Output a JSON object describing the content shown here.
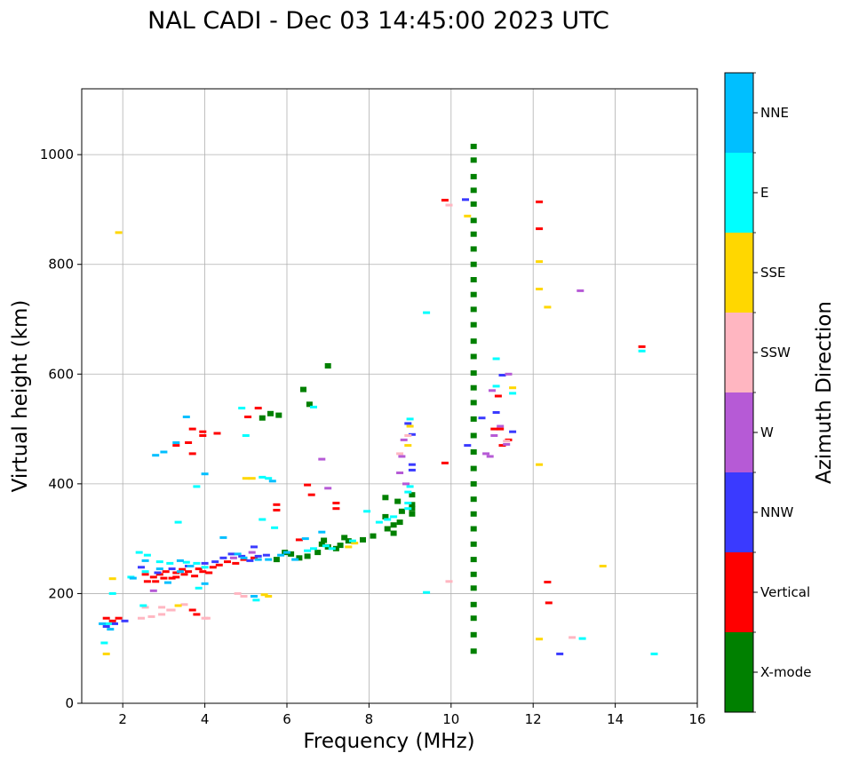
{
  "chart_data": {
    "type": "scatter",
    "title": "NAL CADI - Dec 03 14:45:00 2023 UTC",
    "xlabel": "Frequency (MHz)",
    "ylabel": "Virtual height (km)",
    "xlim": [
      1,
      16
    ],
    "ylim": [
      0,
      1120
    ],
    "xticks": [
      2,
      4,
      6,
      8,
      10,
      12,
      14,
      16
    ],
    "yticks": [
      0,
      200,
      400,
      600,
      800,
      1000
    ],
    "grid": true,
    "colorbar": {
      "label": "Azimuth Direction",
      "categories": [
        {
          "name": "X-mode",
          "color": "#008000"
        },
        {
          "name": "Vertical",
          "color": "#ff0000"
        },
        {
          "name": "NNW",
          "color": "#3a3aff"
        },
        {
          "name": "W",
          "color": "#b65ad6"
        },
        {
          "name": "SSW",
          "color": "#ffb6c1"
        },
        {
          "name": "SSE",
          "color": "#ffd700"
        },
        {
          "name": "E",
          "color": "#00ffff"
        },
        {
          "name": "NNE",
          "color": "#00bfff"
        }
      ]
    },
    "series": [
      {
        "name": "X-mode",
        "points": [
          [
            10.55,
            95
          ],
          [
            10.55,
            125
          ],
          [
            10.55,
            155
          ],
          [
            10.55,
            180
          ],
          [
            10.55,
            210
          ],
          [
            10.55,
            235
          ],
          [
            10.55,
            262
          ],
          [
            10.55,
            290
          ],
          [
            10.55,
            318
          ],
          [
            10.55,
            345
          ],
          [
            10.55,
            372
          ],
          [
            10.55,
            400
          ],
          [
            10.55,
            428
          ],
          [
            10.55,
            458
          ],
          [
            10.55,
            488
          ],
          [
            10.55,
            518
          ],
          [
            10.55,
            548
          ],
          [
            10.55,
            575
          ],
          [
            10.55,
            602
          ],
          [
            10.55,
            632
          ],
          [
            10.55,
            660
          ],
          [
            10.55,
            690
          ],
          [
            10.55,
            718
          ],
          [
            10.55,
            745
          ],
          [
            10.55,
            772
          ],
          [
            10.55,
            800
          ],
          [
            10.55,
            828
          ],
          [
            10.55,
            855
          ],
          [
            10.55,
            880
          ],
          [
            10.55,
            910
          ],
          [
            10.55,
            935
          ],
          [
            10.55,
            960
          ],
          [
            10.55,
            990
          ],
          [
            10.55,
            1015
          ],
          [
            6.3,
            265
          ],
          [
            6.5,
            268
          ],
          [
            6.75,
            275
          ],
          [
            7.0,
            285
          ],
          [
            7.3,
            288
          ],
          [
            7.5,
            296
          ],
          [
            7.85,
            298
          ],
          [
            8.1,
            305
          ],
          [
            8.45,
            318
          ],
          [
            8.6,
            310
          ],
          [
            8.6,
            325
          ],
          [
            8.4,
            340
          ],
          [
            8.4,
            375
          ],
          [
            8.7,
            368
          ],
          [
            8.8,
            350
          ],
          [
            9.05,
            355
          ],
          [
            9.05,
            345
          ],
          [
            9.05,
            362
          ],
          [
            9.05,
            380
          ],
          [
            8.75,
            330
          ],
          [
            6.4,
            572
          ],
          [
            6.55,
            545
          ],
          [
            7.0,
            615
          ],
          [
            5.8,
            525
          ],
          [
            5.6,
            528
          ],
          [
            5.4,
            520
          ],
          [
            6.9,
            297
          ],
          [
            7.2,
            282
          ],
          [
            6.85,
            290
          ],
          [
            7.4,
            302
          ],
          [
            5.95,
            275
          ],
          [
            6.1,
            272
          ],
          [
            5.75,
            262
          ]
        ]
      },
      {
        "name": "Vertical",
        "points": [
          [
            2.6,
            222
          ],
          [
            2.75,
            230
          ],
          [
            2.9,
            235
          ],
          [
            3.05,
            240
          ],
          [
            3.2,
            228
          ],
          [
            3.3,
            238
          ],
          [
            3.45,
            244
          ],
          [
            3.5,
            235
          ],
          [
            3.6,
            240
          ],
          [
            3.75,
            232
          ],
          [
            3.85,
            245
          ],
          [
            3.95,
            240
          ],
          [
            4.1,
            238
          ],
          [
            4.2,
            248
          ],
          [
            4.35,
            252
          ],
          [
            4.55,
            258
          ],
          [
            4.75,
            255
          ],
          [
            4.95,
            262
          ],
          [
            5.2,
            265
          ],
          [
            3.3,
            230
          ],
          [
            3.0,
            228
          ],
          [
            2.55,
            235
          ],
          [
            2.8,
            222
          ],
          [
            3.95,
            488
          ],
          [
            3.95,
            495
          ],
          [
            3.6,
            475
          ],
          [
            3.7,
            455
          ],
          [
            3.3,
            470
          ],
          [
            5.3,
            538
          ],
          [
            5.05,
            522
          ],
          [
            5.75,
            352
          ],
          [
            5.75,
            362
          ],
          [
            6.3,
            298
          ],
          [
            6.5,
            398
          ],
          [
            7.2,
            365
          ],
          [
            7.2,
            355
          ],
          [
            6.6,
            380
          ],
          [
            3.7,
            500
          ],
          [
            3.7,
            170
          ],
          [
            3.8,
            162
          ],
          [
            4.3,
            492
          ],
          [
            1.6,
            155
          ],
          [
            1.75,
            150
          ],
          [
            1.9,
            155
          ],
          [
            9.85,
            917
          ],
          [
            9.85,
            438
          ],
          [
            11.05,
            500
          ],
          [
            11.2,
            500
          ],
          [
            11.25,
            470
          ],
          [
            11.4,
            480
          ],
          [
            11.15,
            560
          ],
          [
            12.15,
            914
          ],
          [
            12.15,
            865
          ],
          [
            12.35,
            221
          ],
          [
            12.38,
            183
          ],
          [
            14.65,
            650
          ]
        ]
      },
      {
        "name": "NNW",
        "points": [
          [
            3.6,
            250
          ],
          [
            4.0,
            255
          ],
          [
            4.25,
            258
          ],
          [
            4.45,
            265
          ],
          [
            4.65,
            272
          ],
          [
            4.9,
            268
          ],
          [
            5.1,
            260
          ],
          [
            5.3,
            268
          ],
          [
            3.2,
            245
          ],
          [
            2.85,
            238
          ],
          [
            2.45,
            248
          ],
          [
            1.6,
            140
          ],
          [
            1.8,
            145
          ],
          [
            2.05,
            150
          ],
          [
            5.5,
            270
          ],
          [
            5.2,
            285
          ],
          [
            8.95,
            510
          ],
          [
            9.05,
            490
          ],
          [
            9.05,
            435
          ],
          [
            9.05,
            425
          ],
          [
            10.4,
            470
          ],
          [
            10.75,
            520
          ],
          [
            11.1,
            530
          ],
          [
            11.25,
            598
          ],
          [
            11.5,
            495
          ],
          [
            12.65,
            90
          ],
          [
            10.35,
            918
          ]
        ]
      },
      {
        "name": "W",
        "points": [
          [
            8.8,
            450
          ],
          [
            8.85,
            480
          ],
          [
            8.75,
            420
          ],
          [
            8.9,
            400
          ],
          [
            10.85,
            455
          ],
          [
            10.95,
            450
          ],
          [
            11.05,
            488
          ],
          [
            11.35,
            472
          ],
          [
            11.2,
            505
          ],
          [
            11.4,
            600
          ],
          [
            11.0,
            570
          ],
          [
            13.15,
            752
          ],
          [
            7.0,
            392
          ],
          [
            6.85,
            445
          ],
          [
            4.7,
            265
          ],
          [
            5.15,
            275
          ],
          [
            2.75,
            205
          ]
        ]
      },
      {
        "name": "SSW",
        "points": [
          [
            2.45,
            155
          ],
          [
            2.7,
            158
          ],
          [
            2.95,
            162
          ],
          [
            3.15,
            170
          ],
          [
            3.5,
            180
          ],
          [
            4.0,
            155
          ],
          [
            2.55,
            175
          ],
          [
            2.95,
            175
          ],
          [
            4.05,
            155
          ],
          [
            3.2,
            170
          ],
          [
            9.95,
            222
          ],
          [
            9.95,
            908
          ],
          [
            8.95,
            488
          ],
          [
            8.75,
            455
          ],
          [
            12.95,
            120
          ],
          [
            11.35,
            478
          ],
          [
            4.8,
            200
          ],
          [
            4.95,
            195
          ]
        ]
      },
      {
        "name": "SSE",
        "points": [
          [
            1.6,
            90
          ],
          [
            1.9,
            858
          ],
          [
            1.75,
            227
          ],
          [
            5.0,
            410
          ],
          [
            5.15,
            410
          ],
          [
            5.45,
            198
          ],
          [
            5.55,
            195
          ],
          [
            7.5,
            285
          ],
          [
            7.65,
            292
          ],
          [
            8.95,
            470
          ],
          [
            9.0,
            505
          ],
          [
            10.4,
            888
          ],
          [
            11.5,
            575
          ],
          [
            12.15,
            805
          ],
          [
            12.15,
            755
          ],
          [
            12.35,
            722
          ],
          [
            12.15,
            435
          ],
          [
            12.15,
            117
          ],
          [
            13.7,
            250
          ],
          [
            3.35,
            178
          ]
        ]
      },
      {
        "name": "E",
        "points": [
          [
            1.55,
            110
          ],
          [
            1.65,
            145
          ],
          [
            1.75,
            200
          ],
          [
            2.4,
            275
          ],
          [
            2.6,
            270
          ],
          [
            2.9,
            258
          ],
          [
            3.15,
            255
          ],
          [
            3.55,
            257
          ],
          [
            3.8,
            255
          ],
          [
            4.0,
            248
          ],
          [
            2.55,
            240
          ],
          [
            5.4,
            412
          ],
          [
            5.55,
            410
          ],
          [
            5.0,
            488
          ],
          [
            8.45,
            335
          ],
          [
            8.6,
            340
          ],
          [
            8.95,
            365
          ],
          [
            8.95,
            385
          ],
          [
            9.0,
            395
          ],
          [
            8.95,
            355
          ],
          [
            9.0,
            518
          ],
          [
            8.25,
            330
          ],
          [
            7.6,
            296
          ],
          [
            7.1,
            282
          ],
          [
            6.95,
            287
          ],
          [
            6.65,
            282
          ],
          [
            6.5,
            278
          ],
          [
            6.65,
            540
          ],
          [
            5.4,
            335
          ],
          [
            5.7,
            320
          ],
          [
            9.4,
            712
          ],
          [
            9.4,
            202
          ],
          [
            11.1,
            628
          ],
          [
            11.1,
            578
          ],
          [
            11.5,
            565
          ],
          [
            14.65,
            642
          ],
          [
            14.95,
            90
          ],
          [
            13.2,
            118
          ],
          [
            3.8,
            395
          ],
          [
            3.35,
            330
          ],
          [
            2.2,
            230
          ],
          [
            2.5,
            178
          ],
          [
            4.9,
            538
          ],
          [
            5.25,
            188
          ],
          [
            3.85,
            210
          ],
          [
            7.95,
            350
          ]
        ]
      },
      {
        "name": "NNE",
        "points": [
          [
            1.5,
            145
          ],
          [
            1.7,
            135
          ],
          [
            2.25,
            228
          ],
          [
            2.55,
            260
          ],
          [
            2.9,
            245
          ],
          [
            3.1,
            220
          ],
          [
            3.4,
            240
          ],
          [
            3.65,
            250
          ],
          [
            4.0,
            218
          ],
          [
            4.0,
            418
          ],
          [
            2.8,
            452
          ],
          [
            3.0,
            458
          ],
          [
            3.3,
            475
          ],
          [
            3.55,
            522
          ],
          [
            4.45,
            302
          ],
          [
            4.8,
            272
          ],
          [
            4.95,
            265
          ],
          [
            5.3,
            262
          ],
          [
            5.55,
            262
          ],
          [
            5.85,
            270
          ],
          [
            6.0,
            275
          ],
          [
            6.2,
            262
          ],
          [
            6.85,
            312
          ],
          [
            6.45,
            300
          ],
          [
            5.2,
            195
          ],
          [
            5.65,
            405
          ],
          [
            3.4,
            260
          ]
        ]
      }
    ]
  }
}
